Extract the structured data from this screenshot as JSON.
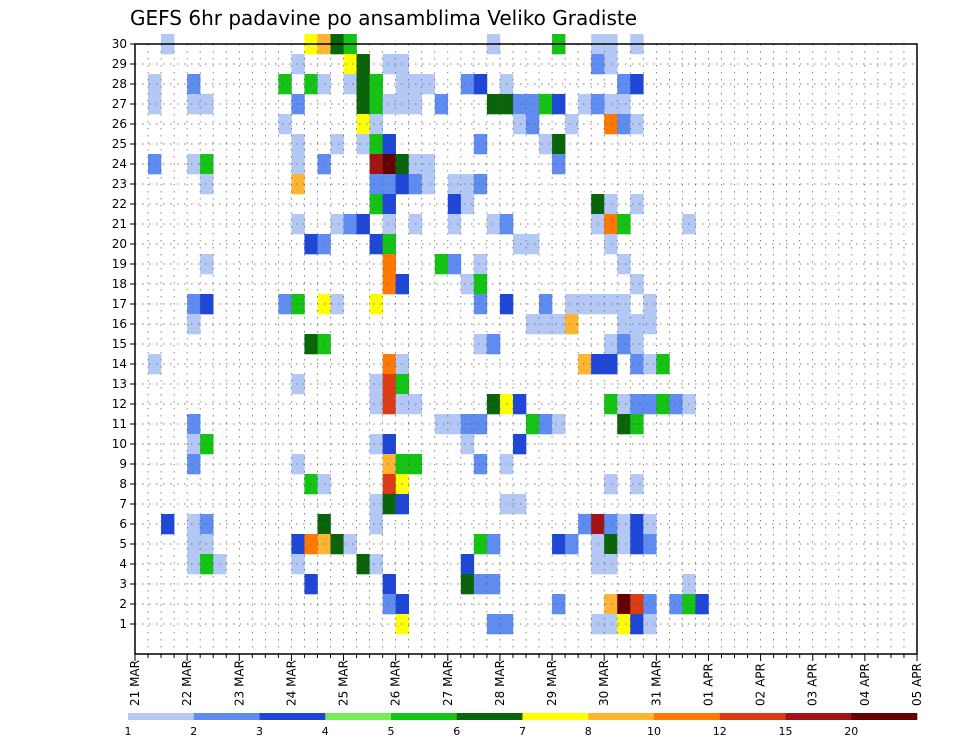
{
  "chart_data": {
    "type": "heatmap",
    "title": "GEFS 6hr padavine po ansamblima Veliko Gradiste",
    "xlabel": "",
    "ylabel": "",
    "y_ticks": [
      "1",
      "2",
      "3",
      "4",
      "5",
      "6",
      "7",
      "8",
      "9",
      "10",
      "11",
      "12",
      "13",
      "14",
      "15",
      "16",
      "17",
      "18",
      "19",
      "20",
      "21",
      "22",
      "23",
      "24",
      "25",
      "26",
      "27",
      "28",
      "29",
      "30"
    ],
    "x_ticks": [
      "21 MAR",
      "22 MAR",
      "23 MAR",
      "24 MAR",
      "25 MAR",
      "26 MAR",
      "27 MAR",
      "28 MAR",
      "29 MAR",
      "30 MAR",
      "31 MAR",
      "01 APR",
      "02 APR",
      "03 APR",
      "04 APR",
      "05 APR"
    ],
    "x_range": [
      "21 MAR 00z",
      "05 APR 00z"
    ],
    "time_step_hours": 6,
    "grid": true,
    "colorbar": {
      "position": "bottom",
      "levels": [
        "1",
        "2",
        "3",
        "4",
        "5",
        "6",
        "7",
        "8",
        "10",
        "12",
        "15",
        "20"
      ],
      "colors": [
        "#b4c8f5",
        "#5f8cf0",
        "#1e46d7",
        "#78eb5a",
        "#14c314",
        "#0a640a",
        "#ffff00",
        "#ffb432",
        "#ff7800",
        "#dc3c14",
        "#a01414",
        "#640000"
      ]
    },
    "cells": [
      [
        30,
        2,
        1
      ],
      [
        30,
        13,
        7
      ],
      [
        30,
        14,
        8
      ],
      [
        30,
        15,
        6
      ],
      [
        30,
        16,
        5
      ],
      [
        30,
        27,
        1
      ],
      [
        30,
        32,
        5
      ],
      [
        30,
        35,
        1
      ],
      [
        30,
        36,
        1
      ],
      [
        30,
        38,
        1
      ],
      [
        29,
        12,
        1
      ],
      [
        29,
        16,
        7
      ],
      [
        29,
        17,
        6
      ],
      [
        29,
        19,
        1
      ],
      [
        29,
        20,
        1
      ],
      [
        29,
        35,
        2
      ],
      [
        29,
        36,
        1
      ],
      [
        28,
        1,
        1
      ],
      [
        28,
        4,
        2
      ],
      [
        28,
        11,
        5
      ],
      [
        28,
        13,
        5
      ],
      [
        28,
        14,
        1
      ],
      [
        28,
        16,
        1
      ],
      [
        28,
        17,
        6
      ],
      [
        28,
        18,
        5
      ],
      [
        28,
        20,
        1
      ],
      [
        28,
        21,
        1
      ],
      [
        28,
        22,
        1
      ],
      [
        28,
        25,
        2
      ],
      [
        28,
        26,
        3
      ],
      [
        28,
        28,
        1
      ],
      [
        28,
        37,
        2
      ],
      [
        28,
        38,
        3
      ],
      [
        27,
        1,
        1
      ],
      [
        27,
        4,
        1
      ],
      [
        27,
        5,
        1
      ],
      [
        27,
        12,
        2
      ],
      [
        27,
        17,
        6
      ],
      [
        27,
        18,
        5
      ],
      [
        27,
        19,
        1
      ],
      [
        27,
        20,
        1
      ],
      [
        27,
        21,
        1
      ],
      [
        27,
        23,
        2
      ],
      [
        27,
        27,
        6
      ],
      [
        27,
        28,
        6
      ],
      [
        27,
        29,
        2
      ],
      [
        27,
        30,
        2
      ],
      [
        27,
        31,
        5
      ],
      [
        27,
        32,
        3
      ],
      [
        27,
        34,
        1
      ],
      [
        27,
        35,
        2
      ],
      [
        27,
        36,
        1
      ],
      [
        27,
        37,
        1
      ],
      [
        26,
        11,
        1
      ],
      [
        26,
        17,
        7
      ],
      [
        26,
        18,
        1
      ],
      [
        26,
        29,
        1
      ],
      [
        26,
        30,
        2
      ],
      [
        26,
        33,
        1
      ],
      [
        26,
        36,
        9
      ],
      [
        26,
        37,
        2
      ],
      [
        26,
        38,
        1
      ],
      [
        25,
        12,
        1
      ],
      [
        25,
        15,
        1
      ],
      [
        25,
        17,
        1
      ],
      [
        25,
        18,
        5
      ],
      [
        25,
        19,
        3
      ],
      [
        25,
        26,
        2
      ],
      [
        25,
        31,
        1
      ],
      [
        25,
        32,
        6
      ],
      [
        24,
        1,
        2
      ],
      [
        24,
        4,
        1
      ],
      [
        24,
        5,
        5
      ],
      [
        24,
        12,
        1
      ],
      [
        24,
        14,
        2
      ],
      [
        24,
        18,
        11
      ],
      [
        24,
        19,
        12
      ],
      [
        24,
        20,
        6
      ],
      [
        24,
        21,
        1
      ],
      [
        24,
        22,
        1
      ],
      [
        24,
        32,
        2
      ],
      [
        23,
        5,
        1
      ],
      [
        23,
        12,
        8
      ],
      [
        23,
        18,
        2
      ],
      [
        23,
        19,
        2
      ],
      [
        23,
        20,
        3
      ],
      [
        23,
        21,
        2
      ],
      [
        23,
        22,
        1
      ],
      [
        23,
        24,
        1
      ],
      [
        23,
        25,
        1
      ],
      [
        23,
        26,
        2
      ],
      [
        22,
        18,
        5
      ],
      [
        22,
        19,
        3
      ],
      [
        22,
        24,
        3
      ],
      [
        22,
        25,
        1
      ],
      [
        22,
        35,
        6
      ],
      [
        22,
        36,
        1
      ],
      [
        22,
        38,
        1
      ],
      [
        21,
        12,
        1
      ],
      [
        21,
        15,
        1
      ],
      [
        21,
        16,
        2
      ],
      [
        21,
        17,
        3
      ],
      [
        21,
        19,
        1
      ],
      [
        21,
        21,
        1
      ],
      [
        21,
        24,
        1
      ],
      [
        21,
        27,
        1
      ],
      [
        21,
        28,
        2
      ],
      [
        21,
        35,
        1
      ],
      [
        21,
        36,
        9
      ],
      [
        21,
        37,
        5
      ],
      [
        21,
        42,
        1
      ],
      [
        20,
        13,
        3
      ],
      [
        20,
        14,
        2
      ],
      [
        20,
        18,
        3
      ],
      [
        20,
        19,
        5
      ],
      [
        20,
        29,
        1
      ],
      [
        20,
        30,
        1
      ],
      [
        20,
        36,
        1
      ],
      [
        19,
        5,
        1
      ],
      [
        19,
        19,
        9
      ],
      [
        19,
        23,
        5
      ],
      [
        19,
        24,
        2
      ],
      [
        19,
        26,
        1
      ],
      [
        19,
        37,
        1
      ],
      [
        18,
        19,
        9
      ],
      [
        18,
        20,
        3
      ],
      [
        18,
        25,
        1
      ],
      [
        18,
        26,
        5
      ],
      [
        18,
        38,
        1
      ],
      [
        17,
        4,
        2
      ],
      [
        17,
        5,
        3
      ],
      [
        17,
        11,
        2
      ],
      [
        17,
        12,
        5
      ],
      [
        17,
        14,
        7
      ],
      [
        17,
        15,
        1
      ],
      [
        17,
        18,
        7
      ],
      [
        17,
        26,
        2
      ],
      [
        17,
        28,
        3
      ],
      [
        17,
        31,
        2
      ],
      [
        17,
        33,
        1
      ],
      [
        17,
        34,
        1
      ],
      [
        17,
        35,
        1
      ],
      [
        17,
        36,
        1
      ],
      [
        17,
        37,
        1
      ],
      [
        17,
        39,
        1
      ],
      [
        16,
        4,
        1
      ],
      [
        16,
        30,
        1
      ],
      [
        16,
        31,
        1
      ],
      [
        16,
        32,
        1
      ],
      [
        16,
        33,
        8
      ],
      [
        16,
        37,
        1
      ],
      [
        16,
        38,
        1
      ],
      [
        16,
        39,
        1
      ],
      [
        15,
        13,
        6
      ],
      [
        15,
        14,
        5
      ],
      [
        15,
        26,
        1
      ],
      [
        15,
        27,
        2
      ],
      [
        15,
        36,
        1
      ],
      [
        15,
        37,
        2
      ],
      [
        15,
        38,
        1
      ],
      [
        14,
        1,
        1
      ],
      [
        14,
        19,
        9
      ],
      [
        14,
        20,
        1
      ],
      [
        14,
        34,
        8
      ],
      [
        14,
        35,
        3
      ],
      [
        14,
        36,
        3
      ],
      [
        14,
        38,
        2
      ],
      [
        14,
        39,
        1
      ],
      [
        14,
        40,
        5
      ],
      [
        13,
        12,
        1
      ],
      [
        13,
        18,
        1
      ],
      [
        13,
        19,
        10
      ],
      [
        13,
        20,
        5
      ],
      [
        12,
        18,
        1
      ],
      [
        12,
        19,
        10
      ],
      [
        12,
        20,
        1
      ],
      [
        12,
        21,
        1
      ],
      [
        12,
        27,
        6
      ],
      [
        12,
        28,
        7
      ],
      [
        12,
        29,
        3
      ],
      [
        12,
        36,
        5
      ],
      [
        12,
        37,
        1
      ],
      [
        12,
        38,
        2
      ],
      [
        12,
        39,
        2
      ],
      [
        12,
        40,
        5
      ],
      [
        12,
        41,
        2
      ],
      [
        12,
        42,
        1
      ],
      [
        11,
        4,
        2
      ],
      [
        11,
        23,
        1
      ],
      [
        11,
        24,
        1
      ],
      [
        11,
        25,
        2
      ],
      [
        11,
        26,
        2
      ],
      [
        11,
        30,
        5
      ],
      [
        11,
        31,
        2
      ],
      [
        11,
        32,
        1
      ],
      [
        11,
        37,
        6
      ],
      [
        11,
        38,
        5
      ],
      [
        10,
        4,
        1
      ],
      [
        10,
        5,
        5
      ],
      [
        10,
        18,
        1
      ],
      [
        10,
        19,
        3
      ],
      [
        10,
        25,
        1
      ],
      [
        10,
        29,
        3
      ],
      [
        9,
        4,
        2
      ],
      [
        9,
        12,
        1
      ],
      [
        9,
        19,
        8
      ],
      [
        9,
        20,
        5
      ],
      [
        9,
        21,
        5
      ],
      [
        9,
        26,
        2
      ],
      [
        9,
        28,
        1
      ],
      [
        8,
        13,
        5
      ],
      [
        8,
        14,
        1
      ],
      [
        8,
        19,
        10
      ],
      [
        8,
        20,
        7
      ],
      [
        8,
        36,
        1
      ],
      [
        8,
        38,
        1
      ],
      [
        7,
        18,
        1
      ],
      [
        7,
        19,
        6
      ],
      [
        7,
        20,
        3
      ],
      [
        7,
        28,
        1
      ],
      [
        7,
        29,
        1
      ],
      [
        6,
        2,
        3
      ],
      [
        6,
        4,
        1
      ],
      [
        6,
        5,
        2
      ],
      [
        6,
        14,
        6
      ],
      [
        6,
        18,
        1
      ],
      [
        6,
        34,
        2
      ],
      [
        6,
        35,
        11
      ],
      [
        6,
        36,
        2
      ],
      [
        6,
        37,
        1
      ],
      [
        6,
        38,
        3
      ],
      [
        6,
        39,
        1
      ],
      [
        5,
        4,
        1
      ],
      [
        5,
        5,
        1
      ],
      [
        5,
        12,
        3
      ],
      [
        5,
        13,
        9
      ],
      [
        5,
        14,
        8
      ],
      [
        5,
        15,
        6
      ],
      [
        5,
        16,
        1
      ],
      [
        5,
        26,
        5
      ],
      [
        5,
        27,
        2
      ],
      [
        5,
        32,
        3
      ],
      [
        5,
        33,
        2
      ],
      [
        5,
        35,
        1
      ],
      [
        5,
        36,
        6
      ],
      [
        5,
        37,
        1
      ],
      [
        5,
        38,
        3
      ],
      [
        5,
        39,
        2
      ],
      [
        4,
        4,
        1
      ],
      [
        4,
        5,
        5
      ],
      [
        4,
        6,
        1
      ],
      [
        4,
        12,
        1
      ],
      [
        4,
        17,
        6
      ],
      [
        4,
        18,
        1
      ],
      [
        4,
        25,
        3
      ],
      [
        4,
        35,
        1
      ],
      [
        4,
        36,
        1
      ],
      [
        3,
        13,
        3
      ],
      [
        3,
        19,
        3
      ],
      [
        3,
        25,
        6
      ],
      [
        3,
        26,
        2
      ],
      [
        3,
        27,
        2
      ],
      [
        3,
        42,
        1
      ],
      [
        2,
        19,
        2
      ],
      [
        2,
        20,
        3
      ],
      [
        2,
        32,
        2
      ],
      [
        2,
        36,
        8
      ],
      [
        2,
        37,
        12
      ],
      [
        2,
        38,
        10
      ],
      [
        2,
        39,
        2
      ],
      [
        2,
        41,
        2
      ],
      [
        2,
        42,
        5
      ],
      [
        2,
        43,
        3
      ],
      [
        1,
        20,
        7
      ],
      [
        1,
        27,
        2
      ],
      [
        1,
        28,
        2
      ],
      [
        1,
        35,
        1
      ],
      [
        1,
        36,
        1
      ],
      [
        1,
        37,
        7
      ],
      [
        1,
        38,
        3
      ],
      [
        1,
        39,
        1
      ]
    ]
  }
}
